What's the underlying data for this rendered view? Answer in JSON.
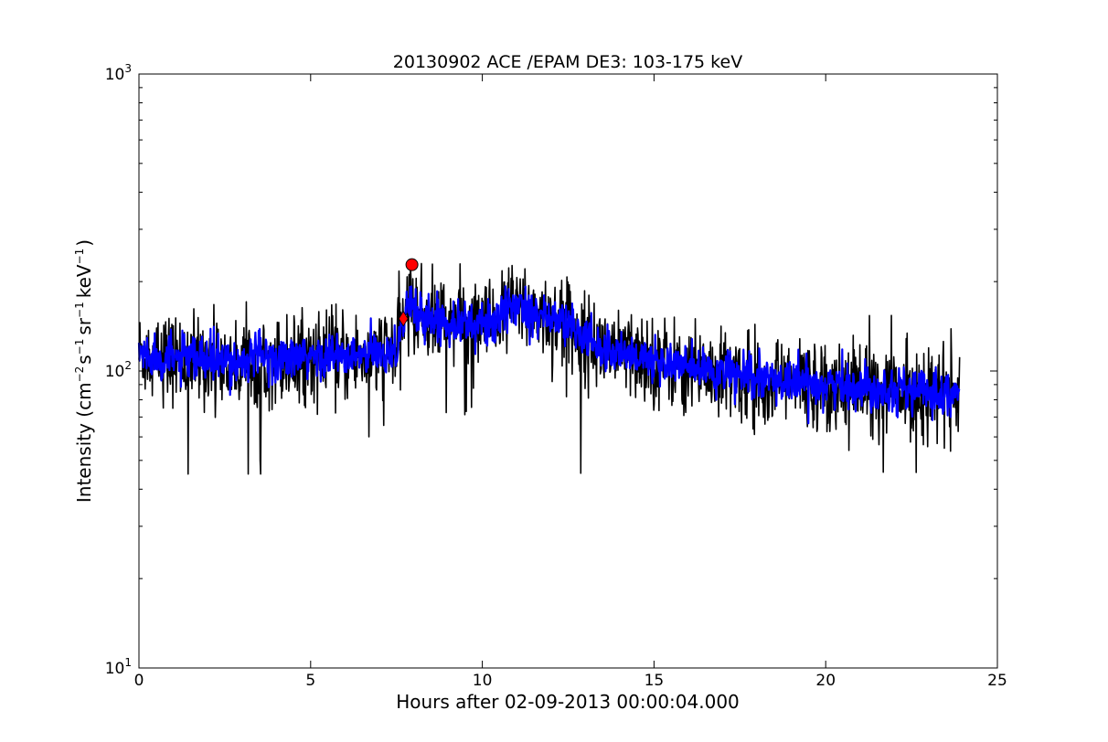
{
  "chart_data": {
    "type": "line",
    "title": "20130902 ACE /EPAM DE3: 103-175 keV",
    "xlabel": "Hours after 02-09-2013 00:00:04.000",
    "ylabel": {
      "prefix": "Intensity (cm",
      "exp1": "−2",
      "mid1": "s",
      "exp2": "−1",
      "mid2": "sr",
      "exp3": "−1",
      "mid3": "keV",
      "exp4": "−1",
      "suffix": ")"
    },
    "xlim": [
      0,
      25
    ],
    "ylim": [
      10,
      1000
    ],
    "yscale": "log",
    "grid": false,
    "x_ticks": [
      {
        "value": 0,
        "label": "0"
      },
      {
        "value": 5,
        "label": "5"
      },
      {
        "value": 10,
        "label": "10"
      },
      {
        "value": 15,
        "label": "15"
      },
      {
        "value": 20,
        "label": "20"
      },
      {
        "value": 25,
        "label": "25"
      }
    ],
    "y_ticks": [
      {
        "value": 10,
        "base": "10",
        "exp": "1"
      },
      {
        "value": 100,
        "base": "10",
        "exp": "2"
      },
      {
        "value": 1000,
        "base": "10",
        "exp": "3"
      }
    ],
    "series": [
      {
        "color": "#000000",
        "style": "raw noisy",
        "x": [
          0,
          0.5,
          1,
          1.5,
          2,
          2.5,
          3,
          3.5,
          4,
          4.5,
          5,
          5.5,
          6,
          6.5,
          7,
          7.5,
          7.7,
          7.9,
          8,
          8.5,
          9,
          9.5,
          10,
          10.5,
          11,
          11.5,
          12,
          12.5,
          13,
          13.5,
          14,
          14.5,
          15,
          15.5,
          16,
          16.5,
          17,
          17.5,
          18,
          18.5,
          19,
          19.5,
          20,
          20.5,
          21,
          21.5,
          22,
          22.5,
          23,
          23.5,
          23.9
        ],
        "values": [
          115,
          112,
          110,
          108,
          110,
          106,
          108,
          112,
          110,
          109,
          111,
          113,
          110,
          112,
          115,
          118,
          150,
          175,
          158,
          150,
          148,
          145,
          142,
          150,
          170,
          160,
          150,
          145,
          128,
          120,
          115,
          112,
          108,
          106,
          103,
          100,
          98,
          96,
          94,
          93,
          92,
          91,
          90,
          89,
          89,
          88,
          87,
          86,
          86,
          85,
          84
        ],
        "noise_range": [
          45,
          230
        ]
      },
      {
        "color": "#0000ff",
        "style": "smoothed",
        "x": [
          0,
          0.5,
          1,
          1.5,
          2,
          2.5,
          3,
          3.5,
          4,
          4.5,
          5,
          5.5,
          6,
          6.5,
          7,
          7.5,
          7.7,
          7.9,
          8,
          8.5,
          9,
          9.5,
          10,
          10.5,
          11,
          11.5,
          12,
          12.5,
          13,
          13.5,
          14,
          14.5,
          15,
          15.5,
          16,
          16.5,
          17,
          17.5,
          18,
          18.5,
          19,
          19.5,
          20,
          20.5,
          21,
          21.5,
          22,
          22.5,
          23,
          23.5,
          23.9
        ],
        "values": [
          115,
          112,
          110,
          108,
          110,
          106,
          108,
          112,
          110,
          109,
          111,
          113,
          110,
          112,
          115,
          118,
          150,
          175,
          158,
          150,
          148,
          145,
          142,
          150,
          170,
          160,
          150,
          145,
          128,
          120,
          115,
          112,
          108,
          106,
          103,
          100,
          98,
          96,
          94,
          93,
          92,
          91,
          90,
          89,
          89,
          88,
          87,
          86,
          86,
          85,
          84
        ]
      }
    ],
    "markers": [
      {
        "shape": "circle",
        "x": 7.95,
        "y": 228,
        "color": "#ff0000"
      },
      {
        "shape": "diamond",
        "x": 7.7,
        "y": 150,
        "color": "#ff0000"
      }
    ]
  }
}
